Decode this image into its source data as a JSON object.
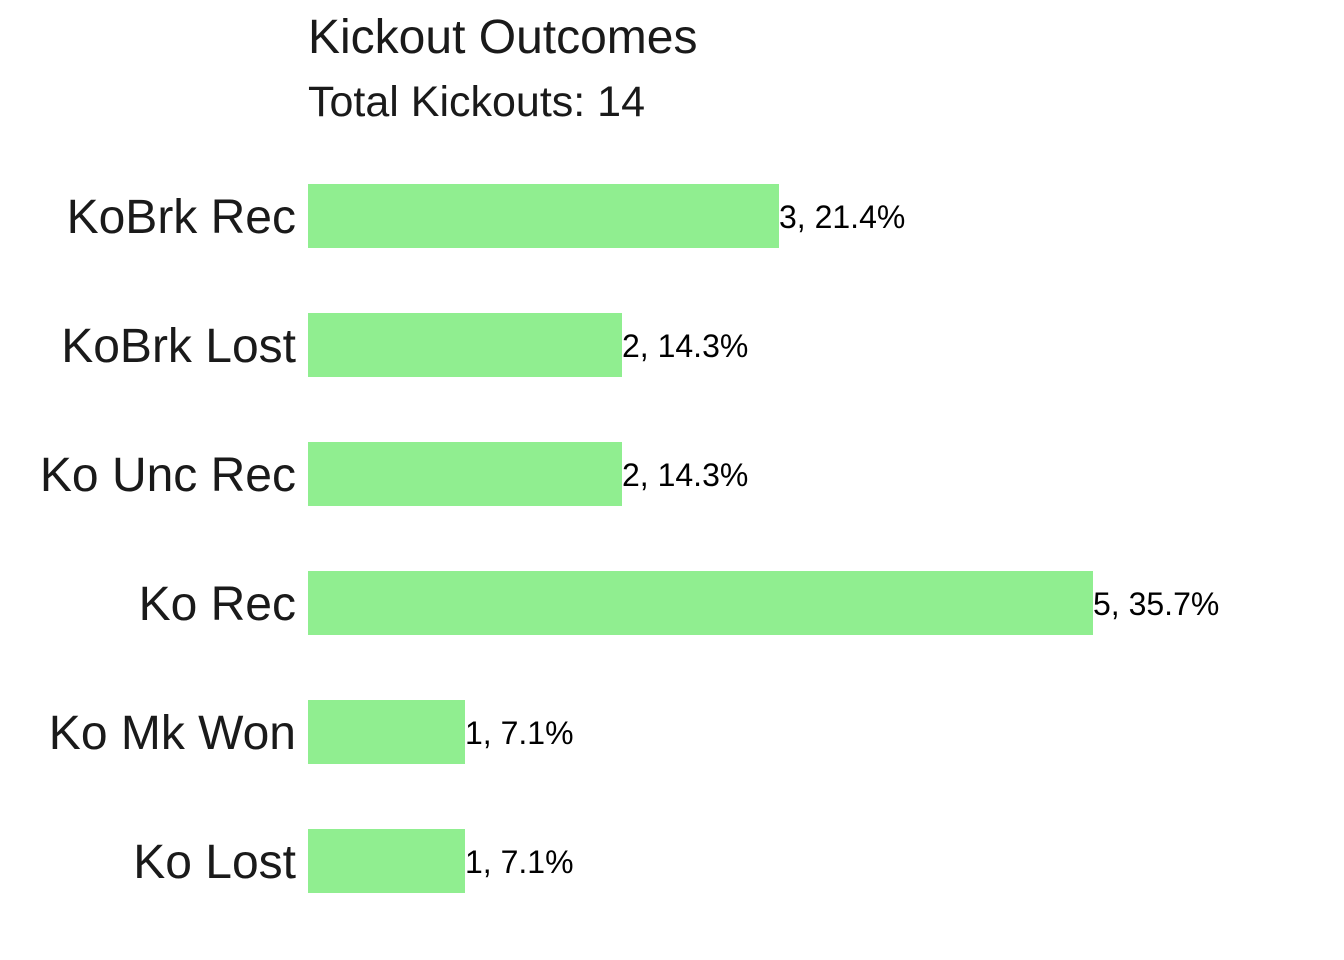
{
  "chart_data": {
    "type": "bar",
    "orientation": "horizontal",
    "title": "Kickout Outcomes",
    "subtitle": "Total Kickouts: 14",
    "categories": [
      "KoBrk Rec",
      "KoBrk Lost",
      "Ko Unc Rec",
      "Ko Rec",
      "Ko Mk Won",
      "Ko Lost"
    ],
    "values": [
      3,
      2,
      2,
      5,
      1,
      1
    ],
    "data_labels": [
      "3, 21.4%",
      "2, 14.3%",
      "2, 14.3%",
      "5, 35.7%",
      "1, 7.1%",
      "1, 7.1%"
    ],
    "xlim": [
      0,
      5
    ],
    "xlabel": "",
    "ylabel": "",
    "grid": false,
    "bar_color": "#90EE90"
  }
}
